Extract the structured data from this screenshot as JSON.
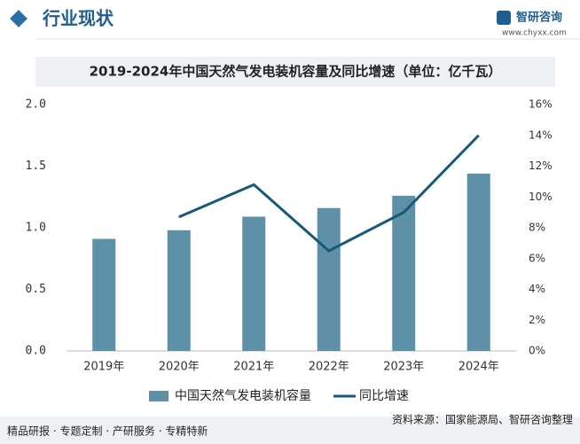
{
  "header": {
    "title": "行业现状",
    "logo": "智研咨询",
    "url": "www.chyxx.com"
  },
  "chart_data": {
    "type": "bar_line",
    "title": "2019-2024年中国天然气发电装机容量及同比增速（单位：亿千瓦）",
    "categories": [
      "2019年",
      "2020年",
      "2021年",
      "2022年",
      "2023年",
      "2024年"
    ],
    "series": [
      {
        "name": "中国天然气发电装机容量",
        "type": "bar",
        "color": "#5e91a8",
        "values": [
          0.91,
          0.98,
          1.09,
          1.16,
          1.26,
          1.44
        ]
      },
      {
        "name": "同比增速",
        "type": "line",
        "axis": "y2",
        "color": "#155a78",
        "values": [
          null,
          8.7,
          10.8,
          6.5,
          9.0,
          14.0
        ]
      }
    ],
    "ylim": [
      0,
      2
    ],
    "yticks": [
      {
        "value": 0,
        "label": "0.0"
      },
      {
        "value": 0.5,
        "label": "0.5"
      },
      {
        "value": 1,
        "label": "1.0"
      },
      {
        "value": 1.5,
        "label": "1.5"
      },
      {
        "value": 2,
        "label": "2.0"
      }
    ],
    "y2lim": [
      0,
      16
    ],
    "y2ticks": [
      {
        "value": 0,
        "label": "0%"
      },
      {
        "value": 2,
        "label": "2%"
      },
      {
        "value": 4,
        "label": "4%"
      },
      {
        "value": 6,
        "label": "6%"
      },
      {
        "value": 8,
        "label": "8%"
      },
      {
        "value": 10,
        "label": "10%"
      },
      {
        "value": 12,
        "label": "12%"
      },
      {
        "value": 14,
        "label": "14%"
      },
      {
        "value": 16,
        "label": "16%"
      }
    ],
    "grid": false,
    "legend": "bottom"
  },
  "footer": {
    "slogan": "精品研报 · 专题定制 · 产研服务 · 专精特新",
    "source": "资料来源：国家能源局、智研咨询整理"
  }
}
